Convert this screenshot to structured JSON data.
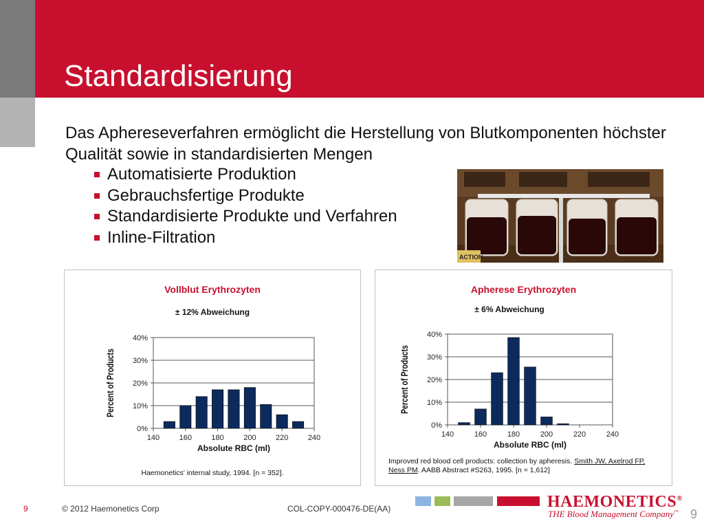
{
  "slide": {
    "title": "Standardisierung",
    "intro": "Das Aphereseverfahren ermöglicht die Herstellung von Blutkomponenten höchster Qualität sowie in standardisierten Mengen",
    "bullets": [
      "Automatisierte Produktion",
      "Gebrauchsfertige Produkte",
      "Standardisierte Produkte und Verfahren",
      "Inline-Filtration"
    ],
    "photo_label": "ACTION"
  },
  "charts": {
    "left": {
      "title": "Vollblut Erythrozyten",
      "subtitle": "± 12% Abweichung",
      "source": "Haemonetics' internal study, 1994. [n = 352]."
    },
    "right": {
      "title": "Apherese Erythrozyten",
      "subtitle": "± 6% Abweichung",
      "source_plain": "Improved red blood cell products: collection by apheresis.",
      "source_link": "Smith JW, Axelrod FP, Ness PM",
      "source_tail": ". AABB Abstract #S263, 1995. [n = 1,612]"
    }
  },
  "chart_data": [
    {
      "type": "bar",
      "title": "Vollblut Erythrozyten",
      "subtitle": "± 12% Abweichung",
      "xlabel": "Absolute RBC (ml)",
      "ylabel": "Percent of Products",
      "xlim": [
        140,
        240
      ],
      "xticks": [
        "140",
        "160",
        "180",
        "200",
        "220",
        "240"
      ],
      "ylim": [
        0,
        40
      ],
      "yticks": [
        "0%",
        "10%",
        "20%",
        "30%",
        "40%"
      ],
      "grid": true,
      "x": [
        150,
        160,
        170,
        180,
        190,
        200,
        210,
        220,
        230
      ],
      "values": [
        3,
        10,
        14,
        17,
        17,
        18,
        10.5,
        6,
        3
      ],
      "color": "#0d2a5c"
    },
    {
      "type": "bar",
      "title": "Apherese Erythrozyten",
      "subtitle": "± 6% Abweichung",
      "xlabel": "Absolute RBC (ml)",
      "ylabel": "Percent of Products",
      "xlim": [
        140,
        240
      ],
      "xticks": [
        "140",
        "160",
        "180",
        "200",
        "220",
        "240"
      ],
      "ylim": [
        0,
        40
      ],
      "yticks": [
        "0%",
        "10%",
        "20%",
        "30%",
        "40%"
      ],
      "grid": true,
      "x": [
        150,
        160,
        170,
        180,
        190,
        200,
        210,
        220,
        230
      ],
      "values": [
        1,
        7,
        23,
        38.5,
        25.5,
        3.5,
        0.5,
        0,
        0
      ],
      "color": "#0d2a5c"
    }
  ],
  "footer": {
    "page_left": "9",
    "copyright": "© 2012 Haemonetics Corp",
    "code": "COL-COPY-000476-DE(AA)",
    "logo": "HAEMONETICS",
    "logo_mark": "®",
    "tagline": "THE Blood Management Company",
    "tagline_mark": "™",
    "page_right": "9",
    "bar_colors": [
      "#8db4e2",
      "#9bbb59",
      "#a6a6a6",
      "#c8102e"
    ]
  }
}
